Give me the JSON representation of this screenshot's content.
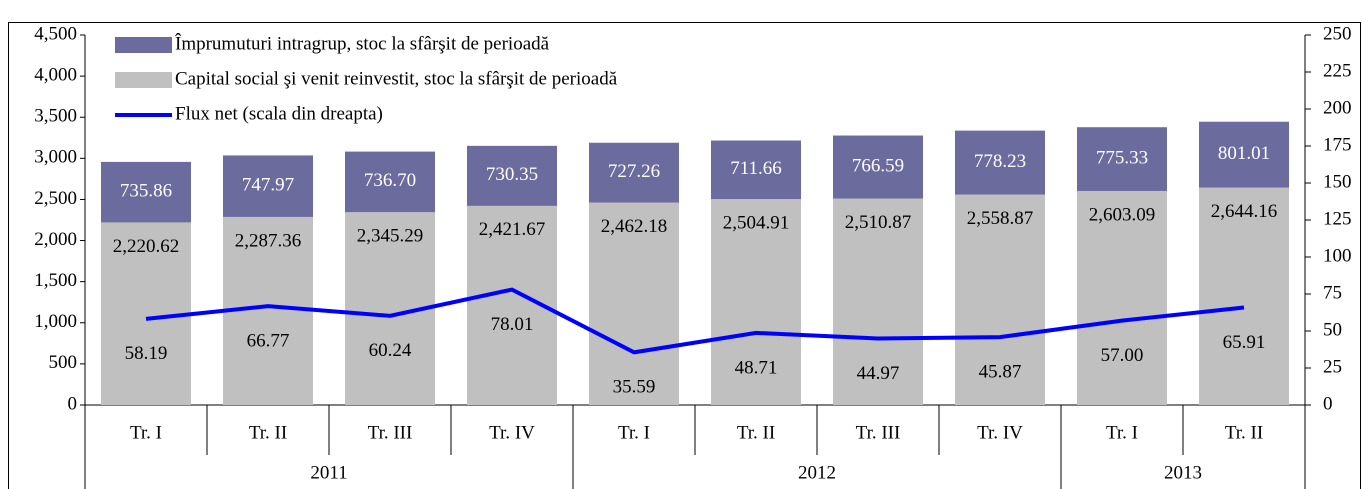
{
  "chart_data": {
    "type": "bar",
    "stacked": true,
    "categories": [
      "Tr. I",
      "Tr. II",
      "Tr. III",
      "Tr. IV",
      "Tr. I",
      "Tr. II",
      "Tr. III",
      "Tr. IV",
      "Tr. I",
      "Tr. II"
    ],
    "groups": [
      {
        "label": "2011",
        "count": 4
      },
      {
        "label": "2012",
        "count": 4
      },
      {
        "label": "2013",
        "count": 2
      }
    ],
    "series": [
      {
        "name": "Capital social şi venit reinvestit, stoc la sfârşit de perioadă",
        "color": "#c0c0c0",
        "type": "bar",
        "axis": "y",
        "values": [
          2220.62,
          2287.36,
          2345.29,
          2421.67,
          2462.18,
          2504.91,
          2510.87,
          2558.87,
          2603.09,
          2644.16
        ],
        "value_labels": [
          "2,220.62",
          "2,287.36",
          "2,345.29",
          "2,421.67",
          "2,462.18",
          "2,504.91",
          "2,510.87",
          "2,558.87",
          "2,603.09",
          "2,644.16"
        ]
      },
      {
        "name": "Împrumuturi intragrup, stoc la sfârşit de perioadă",
        "color": "#6b6b9e",
        "type": "bar",
        "axis": "y",
        "values": [
          735.86,
          747.97,
          736.7,
          730.35,
          727.26,
          711.66,
          766.59,
          778.23,
          775.33,
          801.01
        ],
        "value_labels": [
          "735.86",
          "747.97",
          "736.70",
          "730.35",
          "727.26",
          "711.66",
          "766.59",
          "778.23",
          "775.33",
          "801.01"
        ]
      },
      {
        "name": "Flux net (scala din dreapta)",
        "color": "#0000ff",
        "type": "line",
        "axis": "y2",
        "values": [
          58.19,
          66.77,
          60.24,
          78.01,
          35.59,
          48.71,
          44.97,
          45.87,
          57.0,
          65.91
        ],
        "value_labels": [
          "58.19",
          "66.77",
          "60.24",
          "78.01",
          "35.59",
          "48.71",
          "44.97",
          "45.87",
          "57.00",
          "65.91"
        ]
      }
    ],
    "legend_order": [
      1,
      0,
      2
    ],
    "legend": "upper left",
    "ylim": [
      0,
      4500
    ],
    "yticks": [
      0,
      500,
      {
        "value": 1000,
        "label": "1,000"
      },
      {
        "value": 1500,
        "label": "1,500"
      },
      {
        "value": 2000,
        "label": "2,000"
      },
      {
        "value": 2500,
        "label": "2,500"
      },
      {
        "value": 3000,
        "label": "3,000"
      },
      {
        "value": 3500,
        "label": "3,500"
      },
      {
        "value": 4000,
        "label": "4,000"
      },
      {
        "value": 4500,
        "label": "4,500"
      }
    ],
    "y2lim": [
      0,
      250
    ],
    "y2ticks": [
      0,
      25,
      50,
      75,
      100,
      125,
      150,
      175,
      200,
      225,
      250
    ]
  }
}
